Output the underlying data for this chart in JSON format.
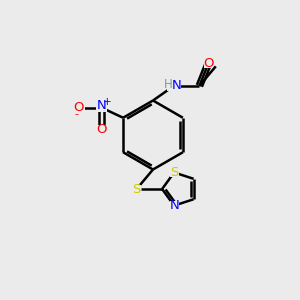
{
  "background_color": "#ebebeb",
  "bond_color": "#000000",
  "atom_colors": {
    "N": "#0000ff",
    "O": "#ff0000",
    "S": "#cccc00",
    "C": "#000000",
    "H": "#7a9a9a"
  }
}
